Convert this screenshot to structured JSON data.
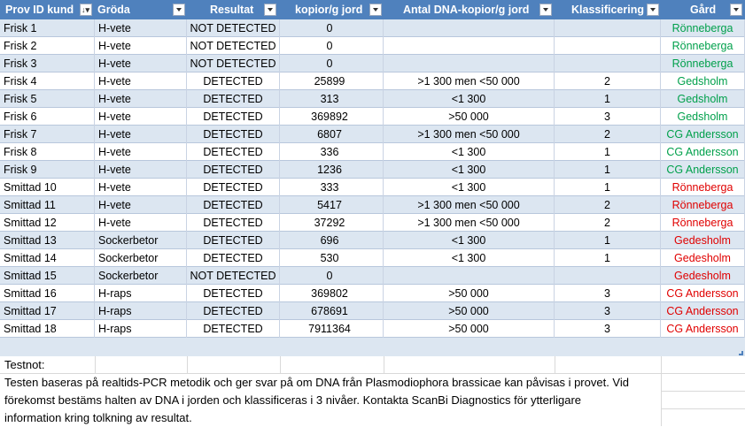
{
  "columns": [
    {
      "key": "prov",
      "label": "Prov  ID kund",
      "sort": true
    },
    {
      "key": "groda",
      "label": "Gröda"
    },
    {
      "key": "resultat",
      "label": "Resultat"
    },
    {
      "key": "kopior",
      "label": "kopior/g jord"
    },
    {
      "key": "antal",
      "label": "Antal DNA-kopior/g jord"
    },
    {
      "key": "klass",
      "label": "Klassificering"
    },
    {
      "key": "gard",
      "label": "Gård"
    }
  ],
  "colors": {
    "header_bg": "#4f81bd",
    "band": "#dce6f1",
    "green": "#00a04b",
    "red": "#e00000"
  },
  "rows": [
    {
      "prov": "Frisk 1",
      "groda": "H-vete",
      "resultat": "NOT DETECTED",
      "kopior": "0",
      "antal": "",
      "klass": "",
      "gard": "Rönneberga",
      "gard_color": "green"
    },
    {
      "prov": "Frisk 2",
      "groda": "H-vete",
      "resultat": "NOT DETECTED",
      "kopior": "0",
      "antal": "",
      "klass": "",
      "gard": "Rönneberga",
      "gard_color": "green"
    },
    {
      "prov": "Frisk 3",
      "groda": "H-vete",
      "resultat": "NOT DETECTED",
      "kopior": "0",
      "antal": "",
      "klass": "",
      "gard": "Rönneberga",
      "gard_color": "green"
    },
    {
      "prov": "Frisk 4",
      "groda": "H-vete",
      "resultat": "DETECTED",
      "kopior": "25899",
      "antal": ">1 300 men <50 000",
      "klass": "2",
      "gard": "Gedsholm",
      "gard_color": "green"
    },
    {
      "prov": "Frisk 5",
      "groda": "H-vete",
      "resultat": "DETECTED",
      "kopior": "313",
      "antal": "<1 300",
      "klass": "1",
      "gard": "Gedsholm",
      "gard_color": "green"
    },
    {
      "prov": "Frisk 6",
      "groda": "H-vete",
      "resultat": "DETECTED",
      "kopior": "369892",
      "antal": ">50 000",
      "klass": "3",
      "gard": "Gedsholm",
      "gard_color": "green"
    },
    {
      "prov": "Frisk 7",
      "groda": "H-vete",
      "resultat": "DETECTED",
      "kopior": "6807",
      "antal": ">1 300 men <50 000",
      "klass": "2",
      "gard": "CG Andersson",
      "gard_color": "green"
    },
    {
      "prov": "Frisk 8",
      "groda": "H-vete",
      "resultat": "DETECTED",
      "kopior": "336",
      "antal": "<1 300",
      "klass": "1",
      "gard": "CG Andersson",
      "gard_color": "green"
    },
    {
      "prov": "Frisk 9",
      "groda": "H-vete",
      "resultat": "DETECTED",
      "kopior": "1236",
      "antal": "<1 300",
      "klass": "1",
      "gard": "CG Andersson",
      "gard_color": "green"
    },
    {
      "prov": "Smittad 10",
      "groda": "H-vete",
      "resultat": "DETECTED",
      "kopior": "333",
      "antal": "<1 300",
      "klass": "1",
      "gard": "Rönneberga",
      "gard_color": "red"
    },
    {
      "prov": "Smittad 11",
      "groda": "H-vete",
      "resultat": "DETECTED",
      "kopior": "5417",
      "antal": ">1 300 men <50 000",
      "klass": "2",
      "gard": "Rönneberga",
      "gard_color": "red"
    },
    {
      "prov": "Smittad 12",
      "groda": "H-vete",
      "resultat": "DETECTED",
      "kopior": "37292",
      "antal": ">1 300 men <50 000",
      "klass": "2",
      "gard": "Rönneberga",
      "gard_color": "red"
    },
    {
      "prov": "Smittad 13",
      "groda": "Sockerbetor",
      "resultat": "DETECTED",
      "kopior": "696",
      "antal": "<1 300",
      "klass": "1",
      "gard": "Gedesholm",
      "gard_color": "red"
    },
    {
      "prov": "Smittad 14",
      "groda": "Sockerbetor",
      "resultat": "DETECTED",
      "kopior": "530",
      "antal": "<1 300",
      "klass": "1",
      "gard": "Gedesholm",
      "gard_color": "red"
    },
    {
      "prov": "Smittad 15",
      "groda": "Sockerbetor",
      "resultat": "NOT DETECTED",
      "kopior": "0",
      "antal": "",
      "klass": "",
      "gard": "Gedesholm",
      "gard_color": "red"
    },
    {
      "prov": "Smittad 16",
      "groda": "H-raps",
      "resultat": "DETECTED",
      "kopior": "369802",
      "antal": ">50 000",
      "klass": "3",
      "gard": "CG Andersson",
      "gard_color": "red"
    },
    {
      "prov": "Smittad 17",
      "groda": "H-raps",
      "resultat": "DETECTED",
      "kopior": "678691",
      "antal": ">50 000",
      "klass": "3",
      "gard": "CG Andersson",
      "gard_color": "red"
    },
    {
      "prov": "Smittad 18",
      "groda": "H-raps",
      "resultat": "DETECTED",
      "kopior": "7911364",
      "antal": ">50 000",
      "klass": "3",
      "gard": "CG Andersson",
      "gard_color": "red"
    }
  ],
  "notes": {
    "title": "Testnot:",
    "line1": "Testen baseras på realtids-PCR metodik och ger svar på om DNA från Plasmodiophora brassicae kan påvisas i provet. Vid",
    "line2": "förekomst bestäms halten av DNA i jorden och klassificeras i 3 nivåer. Kontakta ScanBi Diagnostics för ytterligare",
    "line3": "information kring tolkning av resultat."
  }
}
